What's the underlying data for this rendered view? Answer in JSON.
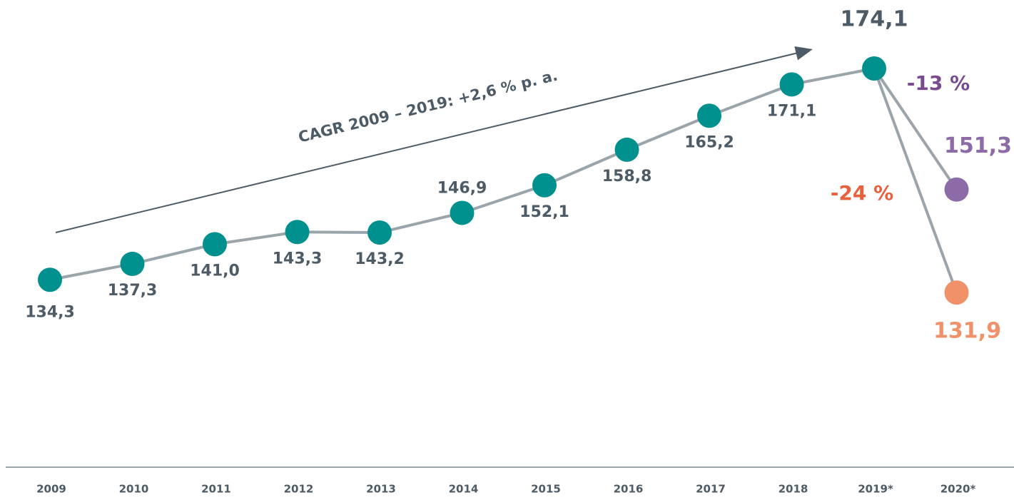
{
  "chart_data": {
    "type": "line",
    "categories": [
      "2009",
      "2010",
      "2011",
      "2012",
      "2013",
      "2014",
      "2015",
      "2016",
      "2017",
      "2018",
      "2019*",
      "2020*"
    ],
    "series": [
      {
        "color": "#00918f",
        "values": [
          134.3,
          137.3,
          141.0,
          143.3,
          143.2,
          146.9,
          152.1,
          158.8,
          165.2,
          171.1,
          174.1,
          null
        ],
        "value_labels": [
          "134,3",
          "137,3",
          "141,0",
          "143,3",
          "143,2",
          "146,9",
          "152,1",
          "158,8",
          "165,2",
          "171,1",
          "174,1",
          null
        ]
      },
      {
        "color": "#8c6ba6",
        "values": [
          null,
          null,
          null,
          null,
          null,
          null,
          null,
          null,
          null,
          null,
          null,
          151.3
        ],
        "value_labels": [
          null,
          null,
          null,
          null,
          null,
          null,
          null,
          null,
          null,
          null,
          null,
          "151,3"
        ]
      },
      {
        "color": "#f0916a",
        "values": [
          null,
          null,
          null,
          null,
          null,
          null,
          null,
          null,
          null,
          null,
          null,
          131.9
        ],
        "value_labels": [
          null,
          null,
          null,
          null,
          null,
          null,
          null,
          null,
          null,
          null,
          null,
          "131,9"
        ]
      }
    ],
    "ylim": [
      99,
      187
    ],
    "annotations": [
      "CAGR 2009 – 2019: +2,6 % p. a.",
      "-13 %",
      "-24 %"
    ]
  }
}
